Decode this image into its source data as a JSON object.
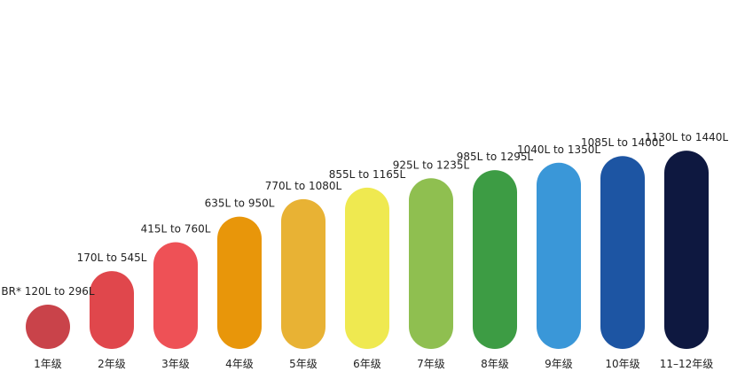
{
  "chart_data": {
    "type": "bar",
    "title": "",
    "xlabel": "",
    "ylabel": "",
    "categories": [
      "1年级",
      "2年级",
      "3年级",
      "4年级",
      "5年级",
      "6年级",
      "7年级",
      "8年级",
      "9年级",
      "10年级",
      "11–12年级"
    ],
    "series": [
      {
        "ranges": [
          {
            "low": 120,
            "high": 296,
            "label": "BR* 120L to 296L",
            "color": "#c9434a"
          },
          {
            "low": 170,
            "high": 545,
            "label": "170L to 545L",
            "color": "#e0474c"
          },
          {
            "low": 415,
            "high": 760,
            "label": "415L to 760L",
            "color": "#ee5156"
          },
          {
            "low": 635,
            "high": 950,
            "label": "635L to 950L",
            "color": "#e8960a"
          },
          {
            "low": 770,
            "high": 1080,
            "label": "770L to 1080L",
            "color": "#e8b234"
          },
          {
            "low": 855,
            "high": 1165,
            "label": "855L to 1165L",
            "color": "#efe950"
          },
          {
            "low": 925,
            "high": 1235,
            "label": "925L to 1235L",
            "color": "#8fbf50"
          },
          {
            "low": 985,
            "high": 1295,
            "label": "985L to 1295L",
            "color": "#3d9c44"
          },
          {
            "low": 1040,
            "high": 1350,
            "label": "1040L to 1350L",
            "color": "#3a97d8"
          },
          {
            "low": 1085,
            "high": 1400,
            "label": "1085L to 1400L",
            "color": "#1d55a3"
          },
          {
            "low": 1130,
            "high": 1440,
            "label": "1130L to 1440L",
            "color": "#0e1840"
          }
        ]
      }
    ],
    "legend": "none",
    "grid": false
  }
}
